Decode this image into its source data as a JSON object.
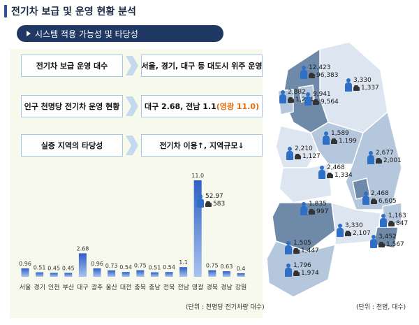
{
  "header": {
    "title": "전기차 보급 및 운영 현황 분석",
    "subtitle": "시스템 적용 가능성 및 타당성"
  },
  "summary": {
    "row1": {
      "label": "전기차 보급 운영 대수",
      "value": "서울, 경기, 대구 등 대도시 위주 운영"
    },
    "row2": {
      "label": "인구 천명당 전기차 운영 현황",
      "value_main": "대구 2.68, 전남 1.1",
      "value_highlight": "(영광 11.0)"
    },
    "row3": {
      "label": "실증 지역의 타당성",
      "value": "전기차 이용↑, 지역규모↓"
    }
  },
  "chart_data": {
    "type": "bar",
    "title": "",
    "categories": [
      "서울",
      "경기",
      "인천",
      "부산",
      "대구",
      "광주",
      "울산",
      "대전",
      "충북",
      "충남",
      "전북",
      "전남",
      "영광",
      "경북",
      "경남",
      "강원"
    ],
    "values": [
      0.96,
      0.51,
      0.45,
      0.45,
      2.68,
      0.96,
      0.73,
      0.54,
      0.75,
      0.51,
      0.54,
      1.1,
      11.0,
      0.75,
      0.63,
      0.4
    ],
    "value_labels": [
      "0.96",
      "0.51",
      "0.45",
      "0.45",
      "2.68",
      "0.96",
      "0.73",
      "0.54",
      "0.75",
      "0.51",
      "0.54",
      "1.1",
      "11.0",
      "0.75",
      "0.63",
      "0.4"
    ],
    "ylim": [
      0,
      11.0
    ],
    "unit": "(단위 : 천명당 전기차량 대수)",
    "inset": {
      "population": "52.97",
      "ev": "583"
    },
    "colors": {
      "bar_top": "#2f5fc6",
      "bar_bottom": "#a9c4ee"
    }
  },
  "map": {
    "unit": "(단위 : 천명, 대수)",
    "regions": [
      {
        "population": "12,423",
        "ev": "96,383"
      },
      {
        "population": "3,330",
        "ev": "1,337"
      },
      {
        "population": "2,882",
        "ev": "1,284"
      },
      {
        "population": "9,941",
        "ev": "9,564"
      },
      {
        "population": "1,589",
        "ev": "1,199"
      },
      {
        "population": "2,210",
        "ev": "1,127"
      },
      {
        "population": "2,677",
        "ev": "2,001"
      },
      {
        "population": "2,468",
        "ev": "1,334"
      },
      {
        "population": "2,468",
        "ev": "6,605"
      },
      {
        "population": "1,835",
        "ev": "997"
      },
      {
        "population": "1,163",
        "ev": "847"
      },
      {
        "population": "3,330",
        "ev": "2,107"
      },
      {
        "population": "3,452",
        "ev": "1,567"
      },
      {
        "population": "1,505",
        "ev": "1,447"
      },
      {
        "population": "1,796",
        "ev": "1,974"
      }
    ],
    "colors": {
      "light": "#dde6f0",
      "mid": "#b5c7dc",
      "dark": "#6f8aa8",
      "border": "#ffffff"
    }
  }
}
